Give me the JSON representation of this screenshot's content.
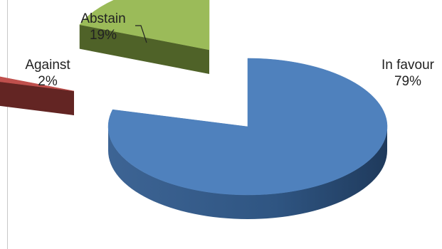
{
  "chart_data": {
    "type": "pie",
    "three_d": true,
    "exploded": true,
    "title": "",
    "categories": [
      "In favour",
      "Against",
      "Abstain"
    ],
    "values": [
      79,
      2,
      19
    ],
    "value_labels": [
      "79%",
      "2%",
      "19%"
    ],
    "colors": [
      "#4f81bd",
      "#c0504d",
      "#9bbb59"
    ],
    "side_colors": [
      "#2c4d75",
      "#632523",
      "#4f6228"
    ],
    "legend": "none"
  }
}
